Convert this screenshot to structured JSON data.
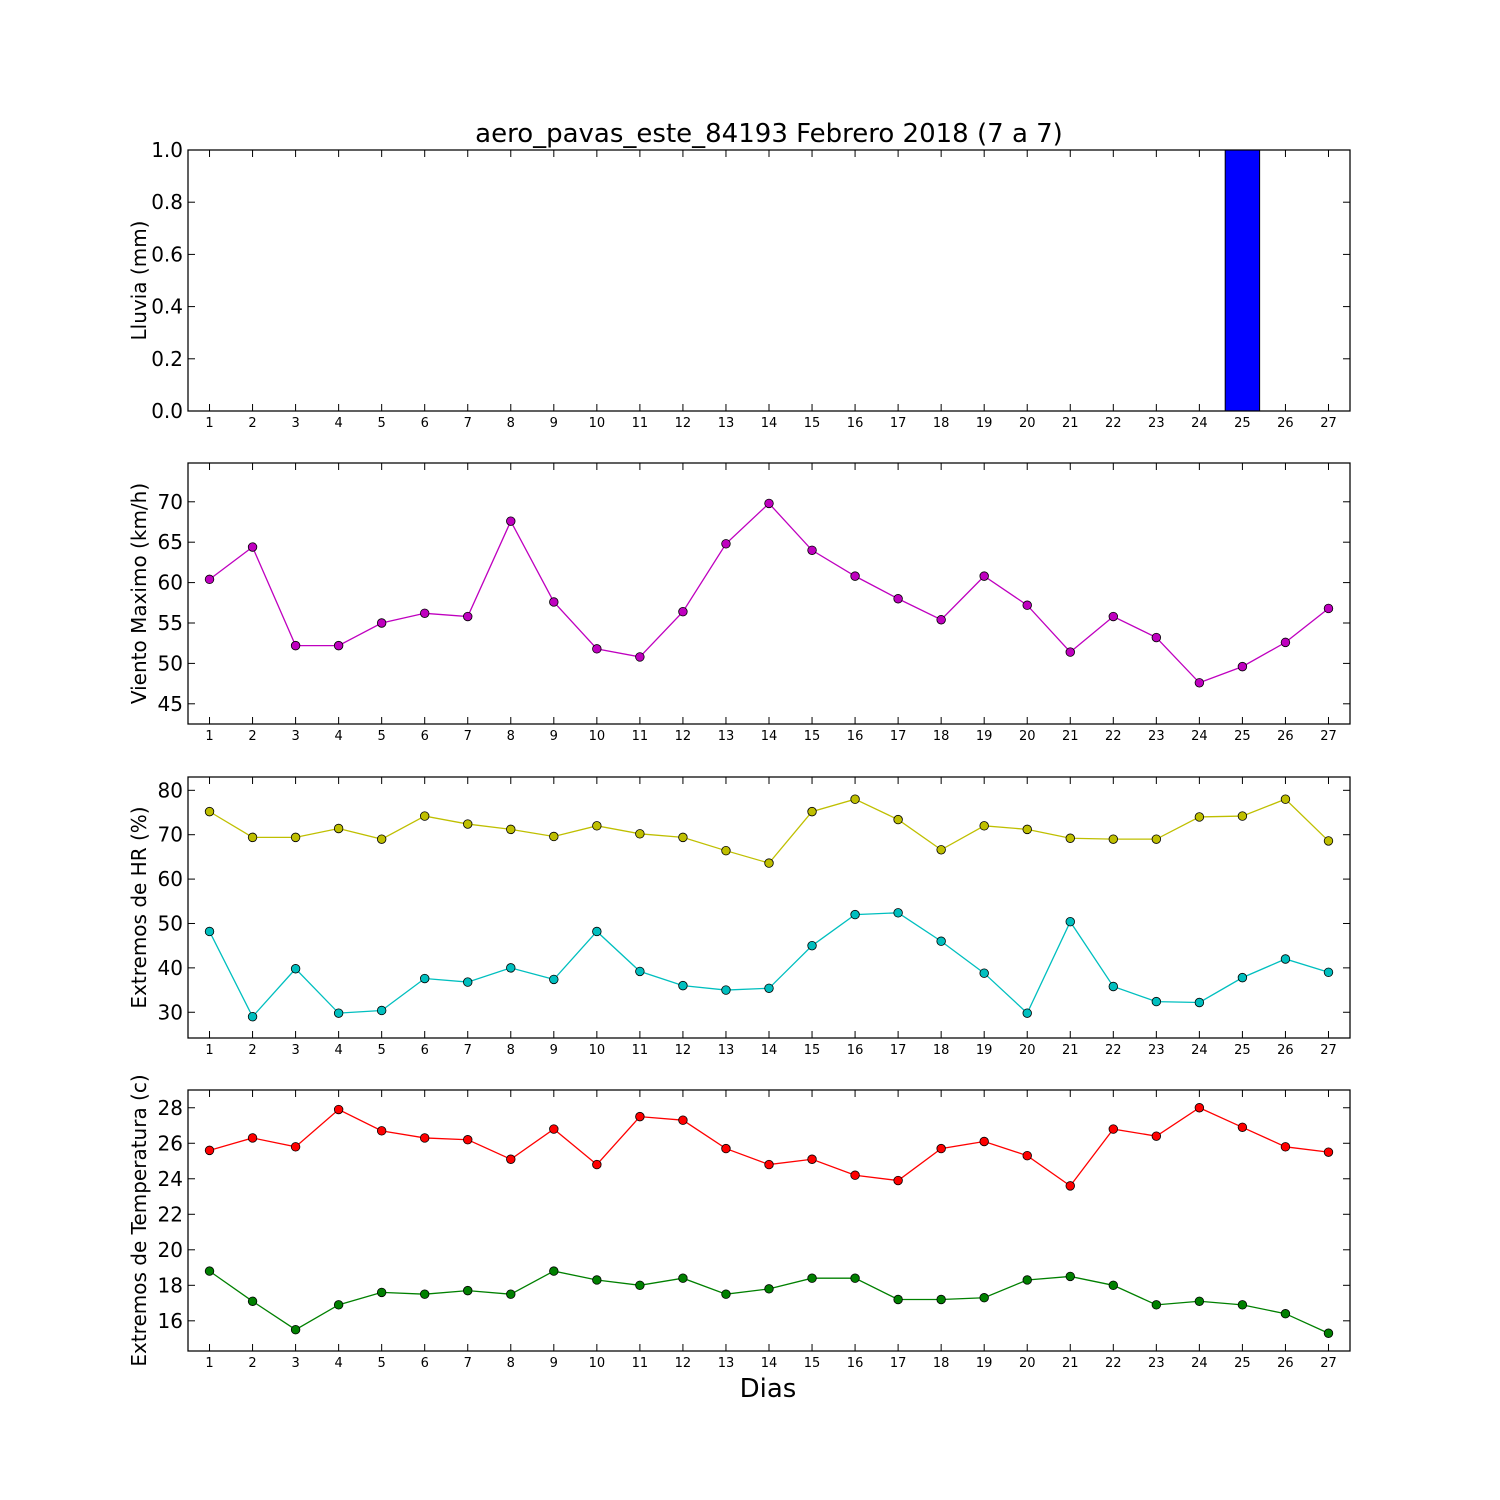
{
  "figure": {
    "title": "aero_pavas_este_84193 Febrero 2018  (7 a 7)",
    "xlabel": "Dias"
  },
  "chart_data": [
    {
      "type": "bar",
      "title": "aero_pavas_este_84193 Febrero 2018  (7 a 7)",
      "xlabel": "",
      "ylabel": "Lluvia (mm)",
      "x": [
        1,
        2,
        3,
        4,
        5,
        6,
        7,
        8,
        9,
        10,
        11,
        12,
        13,
        14,
        15,
        16,
        17,
        18,
        19,
        20,
        21,
        22,
        23,
        24,
        25,
        26,
        27
      ],
      "ylim": [
        0,
        1
      ],
      "yticks": [
        0.0,
        0.2,
        0.4,
        0.6,
        0.8,
        1.0
      ],
      "ytick_labels": [
        "0.0",
        "0.2",
        "0.4",
        "0.6",
        "0.8",
        "1.0"
      ],
      "xlim": [
        0.5,
        27.5
      ],
      "grid": false,
      "series": [
        {
          "color": "#0000ff",
          "values": [
            0,
            0,
            0,
            0,
            0,
            0,
            0,
            0,
            0,
            0,
            0,
            0,
            0,
            0,
            0,
            0,
            0,
            0,
            0,
            0,
            0,
            0,
            0,
            0,
            1.0,
            0,
            0
          ]
        }
      ]
    },
    {
      "type": "line",
      "xlabel": "",
      "ylabel": "Viento Maximo (km/h)",
      "x": [
        1,
        2,
        3,
        4,
        5,
        6,
        7,
        8,
        9,
        10,
        11,
        12,
        13,
        14,
        15,
        16,
        17,
        18,
        19,
        20,
        21,
        22,
        23,
        24,
        25,
        26,
        27
      ],
      "ylim": [
        42.5,
        74.8
      ],
      "yticks": [
        45,
        50,
        55,
        60,
        65,
        70
      ],
      "ytick_labels": [
        "45",
        "50",
        "55",
        "60",
        "65",
        "70"
      ],
      "xlim": [
        0.5,
        27.5
      ],
      "grid": false,
      "series": [
        {
          "color": "#bf00bf",
          "values": [
            60.4,
            64.4,
            52.2,
            52.2,
            55.0,
            56.2,
            55.8,
            67.6,
            57.6,
            51.8,
            50.8,
            56.4,
            64.8,
            69.8,
            64.0,
            60.8,
            58.0,
            55.4,
            60.8,
            57.2,
            51.4,
            55.8,
            53.2,
            47.6,
            49.6,
            52.6,
            56.8
          ]
        }
      ]
    },
    {
      "type": "line",
      "xlabel": "",
      "ylabel": "Extremos de HR (%)",
      "x": [
        1,
        2,
        3,
        4,
        5,
        6,
        7,
        8,
        9,
        10,
        11,
        12,
        13,
        14,
        15,
        16,
        17,
        18,
        19,
        20,
        21,
        22,
        23,
        24,
        25,
        26,
        27
      ],
      "ylim": [
        24.2,
        83.0
      ],
      "yticks": [
        30,
        40,
        50,
        60,
        70,
        80
      ],
      "ytick_labels": [
        "30",
        "40",
        "50",
        "60",
        "70",
        "80"
      ],
      "xlim": [
        0.5,
        27.5
      ],
      "grid": false,
      "series": [
        {
          "color": "#bfbf00",
          "values": [
            75.2,
            69.4,
            69.4,
            71.4,
            69.0,
            74.2,
            72.4,
            71.2,
            69.6,
            72.0,
            70.2,
            69.4,
            66.4,
            63.6,
            75.2,
            78.0,
            73.4,
            66.6,
            72.0,
            71.2,
            69.2,
            69.0,
            69.0,
            74.0,
            74.2,
            78.0,
            68.6
          ]
        },
        {
          "color": "#00bfbf",
          "values": [
            48.2,
            29.0,
            39.8,
            29.8,
            30.4,
            37.6,
            36.8,
            40.0,
            37.4,
            48.2,
            39.2,
            36.0,
            35.0,
            35.4,
            45.0,
            52.0,
            52.4,
            46.0,
            38.8,
            29.8,
            50.4,
            35.8,
            32.4,
            32.2,
            37.8,
            42.0,
            39.0
          ]
        }
      ]
    },
    {
      "type": "line",
      "xlabel": "Dias",
      "ylabel": "Extremos de Temperatura (c)",
      "x": [
        1,
        2,
        3,
        4,
        5,
        6,
        7,
        8,
        9,
        10,
        11,
        12,
        13,
        14,
        15,
        16,
        17,
        18,
        19,
        20,
        21,
        22,
        23,
        24,
        25,
        26,
        27
      ],
      "ylim": [
        14.3,
        29.0
      ],
      "yticks": [
        16,
        18,
        20,
        22,
        24,
        26,
        28
      ],
      "ytick_labels": [
        "16",
        "18",
        "20",
        "22",
        "24",
        "26",
        "28"
      ],
      "xlim": [
        0.5,
        27.5
      ],
      "grid": false,
      "series": [
        {
          "color": "#ff0000",
          "values": [
            25.6,
            26.3,
            25.8,
            27.9,
            26.7,
            26.3,
            26.2,
            25.1,
            26.8,
            24.8,
            27.5,
            27.3,
            25.7,
            24.8,
            25.1,
            24.2,
            23.9,
            25.7,
            26.1,
            25.3,
            23.6,
            26.8,
            26.4,
            28.0,
            26.9,
            25.8,
            25.5
          ]
        },
        {
          "color": "#008000",
          "values": [
            18.8,
            17.1,
            15.5,
            16.9,
            17.6,
            17.5,
            17.7,
            17.5,
            18.8,
            18.3,
            18.0,
            18.4,
            17.5,
            17.8,
            18.4,
            18.4,
            17.2,
            17.2,
            17.3,
            18.3,
            18.5,
            18.0,
            16.9,
            17.1,
            16.9,
            16.4,
            15.3
          ]
        }
      ]
    }
  ]
}
